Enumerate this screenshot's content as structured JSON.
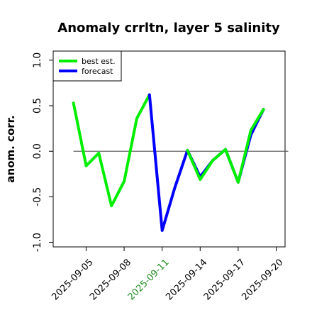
{
  "chart_data": {
    "type": "line",
    "title": "Anomaly crrltn, layer 5 salinity",
    "ylabel": "anom. corr.",
    "xlabel": "",
    "ylim": [
      -1.05,
      1.1
    ],
    "yticks": [
      -1.0,
      -0.5,
      0.0,
      0.5,
      1.0
    ],
    "ytick_labels": [
      "-1.0",
      "-0.5",
      "0.0",
      "0.5",
      "1.0"
    ],
    "xlim": [
      -1.6,
      16.7
    ],
    "x": [
      "2025-09-04",
      "2025-09-05",
      "2025-09-06",
      "2025-09-07",
      "2025-09-08",
      "2025-09-09",
      "2025-09-10",
      "2025-09-11",
      "2025-09-12",
      "2025-09-13",
      "2025-09-14",
      "2025-09-15",
      "2025-09-16",
      "2025-09-17",
      "2025-09-18",
      "2025-09-19",
      "2025-09-20"
    ],
    "xticks": [
      {
        "label": "2025-09-05",
        "color": "#000000"
      },
      {
        "label": "2025-09-08",
        "color": "#000000"
      },
      {
        "label": "2025-09-11",
        "color": "#228B22"
      },
      {
        "label": "2025-09-14",
        "color": "#000000"
      },
      {
        "label": "2025-09-17",
        "color": "#000000"
      },
      {
        "label": "2025-09-20",
        "color": "#000000"
      }
    ],
    "reference_line": 0.0,
    "legend_position": "top-left",
    "series": [
      {
        "name": "best est.",
        "color": "#00ee00",
        "values": [
          0.53,
          -0.16,
          -0.02,
          -0.6,
          -0.33,
          0.36,
          0.62,
          null,
          null,
          null,
          null,
          null,
          null,
          null,
          null,
          null,
          null
        ]
      },
      {
        "name": "forecast",
        "color": "#0000ff",
        "values": [
          null,
          null,
          null,
          null,
          null,
          null,
          0.62,
          -0.87,
          -0.4,
          0.01,
          -0.28,
          -0.1,
          0.02,
          -0.34,
          0.18,
          0.46,
          null
        ]
      },
      {
        "name": "best est.",
        "color": "#00ee00",
        "values": [
          null,
          null,
          null,
          null,
          null,
          null,
          null,
          null,
          null,
          0.01,
          -0.31,
          -0.1,
          0.02,
          -0.34,
          0.23,
          0.46,
          null
        ]
      }
    ]
  }
}
